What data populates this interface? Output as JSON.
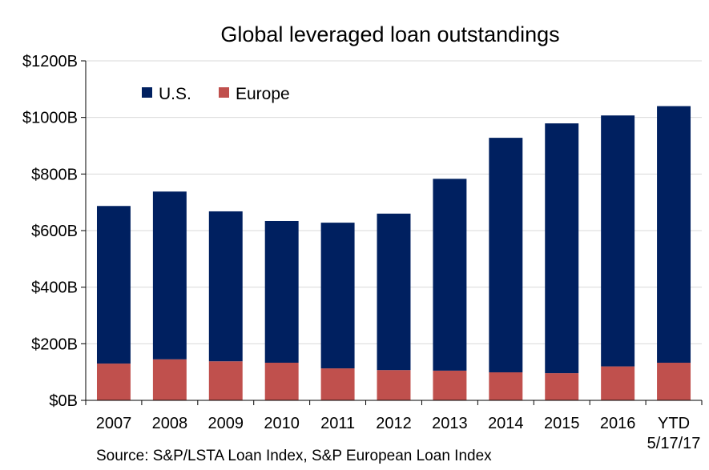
{
  "chart_data": {
    "type": "bar",
    "stacked": true,
    "title": "Global leveraged loan outstandings",
    "source": "Source: S&P/LSTA Loan Index, S&P European Loan Index",
    "categories": [
      [
        "2007"
      ],
      [
        "2008"
      ],
      [
        "2009"
      ],
      [
        "2010"
      ],
      [
        "2011"
      ],
      [
        "2012"
      ],
      [
        "2013"
      ],
      [
        "2014"
      ],
      [
        "2015"
      ],
      [
        "2016"
      ],
      [
        "YTD",
        "5/17/17"
      ]
    ],
    "series": [
      {
        "name": "Europe",
        "color": "#c0504d",
        "values": [
          130,
          145,
          138,
          133,
          113,
          107,
          105,
          99,
          96,
          120,
          133
        ]
      },
      {
        "name": "U.S.",
        "color": "#002060",
        "values": [
          557,
          593,
          530,
          501,
          515,
          553,
          678,
          829,
          883,
          887,
          907
        ]
      }
    ],
    "legend_order": [
      "U.S.",
      "Europe"
    ],
    "legend_position": "top-left",
    "yticks": [
      "$0B",
      "$200B",
      "$400B",
      "$600B",
      "$800B",
      "$1000B",
      "$1200B"
    ],
    "ylim": [
      0,
      1200
    ],
    "grid": true
  }
}
